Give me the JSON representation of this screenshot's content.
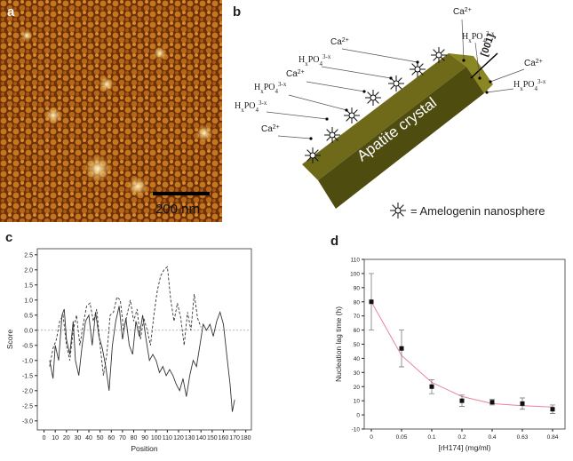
{
  "panel_labels": [
    "a",
    "b",
    "c",
    "d"
  ],
  "image_a": {
    "scale_bar": "200 nm"
  },
  "diagram_b": {
    "ions": [
      [
        {
          "text": "Ca"
        },
        {
          "sup": "2+"
        }
      ],
      [
        {
          "text": "H"
        },
        {
          "sub": "x"
        },
        {
          "text": "PO"
        },
        {
          "sub": "4"
        },
        {
          "sup": "3-x"
        }
      ],
      [
        {
          "text": "Ca"
        },
        {
          "sup": "2+"
        }
      ],
      [
        {
          "text": "H"
        },
        {
          "sub": "x"
        },
        {
          "text": "PO"
        },
        {
          "sub": "4"
        },
        {
          "sup": "3-x"
        }
      ],
      [
        {
          "text": "Ca"
        },
        {
          "sup": "2+"
        }
      ],
      [
        {
          "text": "H"
        },
        {
          "sub": "x"
        },
        {
          "text": "PO"
        },
        {
          "sub": "4"
        },
        {
          "sup": "3-x"
        }
      ],
      [
        {
          "text": "H"
        },
        {
          "sub": "x"
        },
        {
          "text": "PO"
        },
        {
          "sub": "4"
        },
        {
          "sup": "3-x"
        }
      ],
      [
        {
          "text": "Ca"
        },
        {
          "sup": "2+"
        }
      ],
      [
        {
          "text": "Ca"
        },
        {
          "sup": "2+"
        }
      ],
      [
        {
          "text": "H"
        },
        {
          "sub": "x"
        },
        {
          "text": "PO"
        },
        {
          "sub": "4"
        },
        {
          "sup": "3-x"
        }
      ]
    ],
    "direction": "[001]",
    "crystal_label": "Apatite crystal",
    "legend": "= Amelogenin nanosphere"
  },
  "chart_data": [
    {
      "type": "line",
      "xlabel": "Position",
      "ylabel": "Score",
      "xlim": [
        -6,
        185
      ],
      "xticks": [
        0,
        10,
        20,
        30,
        40,
        50,
        60,
        70,
        80,
        90,
        100,
        110,
        120,
        130,
        140,
        150,
        160,
        170,
        180
      ],
      "ylim": [
        -3.3,
        2.7
      ],
      "yticks": [
        {
          "value": -3.0,
          "label": "-3.0"
        },
        -2.5,
        {
          "value": -2.0,
          "label": "-2.0"
        },
        -1.5,
        {
          "value": -1.0,
          "label": "-1.0"
        },
        -0.5,
        {
          "value": 0.0,
          "label": "0.0"
        },
        0.5,
        {
          "value": 1.0,
          "label": "1.0"
        },
        1.5,
        {
          "value": 2.0,
          "label": "2.0"
        },
        2.5
      ],
      "zero_line": true,
      "series": [
        {
          "color": "#333333",
          "linestyle": "solid",
          "x": [
            5,
            8,
            10,
            13,
            16,
            18,
            20,
            23,
            26,
            28,
            31,
            34,
            37,
            40,
            43,
            46,
            49,
            52,
            55,
            58,
            61,
            64,
            67,
            70,
            73,
            76,
            79,
            82,
            85,
            88,
            91,
            94,
            97,
            100,
            103,
            106,
            109,
            112,
            115,
            118,
            121,
            124,
            127,
            130,
            133,
            136,
            139,
            142,
            145,
            148,
            151,
            154,
            157,
            160,
            163,
            166,
            168,
            170
          ],
          "values": [
            -1.0,
            -1.6,
            -0.5,
            -1.0,
            0.5,
            0.7,
            -0.3,
            -0.8,
            0.3,
            -1.0,
            -1.5,
            -0.5,
            0.3,
            0.5,
            -0.5,
            0.6,
            -0.2,
            -0.6,
            -1.2,
            -2.0,
            -0.5,
            0.3,
            0.8,
            -0.3,
            0.4,
            -0.5,
            -0.8,
            0.3,
            -0.2,
            0.5,
            -0.3,
            -1.0,
            -0.8,
            -1.0,
            -1.4,
            -1.2,
            -1.5,
            -1.3,
            -1.5,
            -1.8,
            -2.0,
            -1.6,
            -2.2,
            -1.5,
            -1.0,
            -1.2,
            -0.5,
            0.2,
            0.0,
            0.2,
            -0.2,
            0.3,
            0.6,
            0.2,
            -0.8,
            -1.8,
            -2.7,
            -2.3
          ]
        },
        {
          "color": "#333333",
          "linestyle": "dashed",
          "x": [
            5,
            8,
            11,
            14,
            17,
            20,
            23,
            26,
            29,
            32,
            35,
            38,
            41,
            44,
            47,
            50,
            53,
            56,
            59,
            62,
            65,
            68,
            71,
            74,
            77,
            80,
            83,
            86,
            89,
            92,
            95,
            98,
            101,
            104,
            107,
            110,
            113,
            116,
            119,
            122,
            125,
            128,
            131,
            134,
            137,
            140
          ],
          "values": [
            -1.2,
            -0.6,
            -0.3,
            0.3,
            0.5,
            -0.5,
            -1.0,
            0.0,
            0.5,
            -0.5,
            0.2,
            0.8,
            0.9,
            0.3,
            0.7,
            -0.5,
            -1.5,
            -0.8,
            0.5,
            0.6,
            1.1,
            1.0,
            0.0,
            0.5,
            1.0,
            0.3,
            0.7,
            -0.3,
            0.4,
            0.0,
            -0.5,
            0.5,
            1.3,
            1.8,
            2.0,
            2.1,
            1.0,
            0.3,
            0.9,
            0.4,
            -0.5,
            0.6,
            0.0,
            1.2,
            0.4,
            0.1
          ]
        }
      ]
    },
    {
      "type": "scatter",
      "xlabel": "[rH174] (mg/ml)",
      "ylabel": "Nucleation lag time (h)",
      "categories": [
        "0",
        "0.05",
        "0.1",
        "0.2",
        "0.4",
        "0.63",
        "0.84"
      ],
      "ylim": [
        -10,
        110
      ],
      "yticks": [
        -10,
        0,
        10,
        20,
        30,
        40,
        50,
        60,
        70,
        80,
        90,
        100,
        110
      ],
      "series": [
        {
          "color": "#111111",
          "values": [
            80,
            47,
            20,
            10,
            9,
            8,
            4
          ],
          "errors": [
            20,
            13,
            5,
            4,
            2,
            4,
            3
          ]
        }
      ],
      "fit": {
        "color": "#e8849a",
        "values": [
          80,
          42,
          23,
          13,
          8,
          6.5,
          5.5
        ]
      }
    }
  ]
}
